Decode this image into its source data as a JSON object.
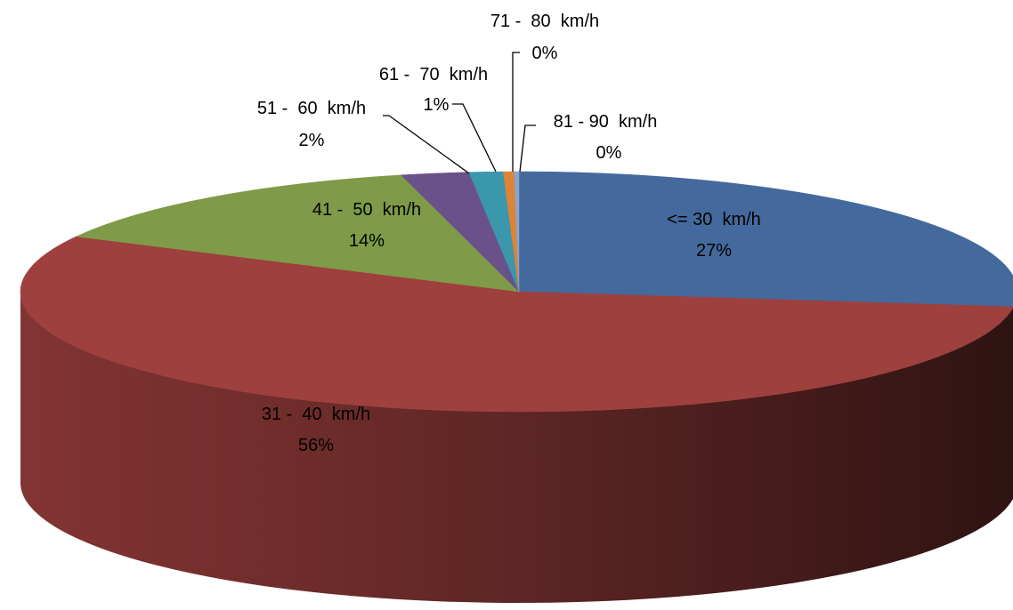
{
  "chart_data": {
    "type": "pie",
    "title": "",
    "three_d": true,
    "legend": "none",
    "slices": [
      {
        "label": "<= 30  km/h",
        "percent_label": "27%",
        "value": 27.0,
        "color": "#44699C"
      },
      {
        "label": "31 -  40  km/h",
        "percent_label": "56%",
        "value": 55.6,
        "color": "#9E403E"
      },
      {
        "label": "41 -  50  km/h",
        "percent_label": "14%",
        "value": 13.6,
        "color": "#7F9A48"
      },
      {
        "label": "51 -  60  km/h",
        "percent_label": "2%",
        "value": 2.2,
        "color": "#6A5189"
      },
      {
        "label": "61 -  70  km/h",
        "percent_label": "1%",
        "value": 1.1,
        "color": "#3B97AC"
      },
      {
        "label": "71 -  80  km/h",
        "percent_label": "0%",
        "value": 0.35,
        "color": "#DC8437"
      },
      {
        "label": "81 - 90  km/h",
        "percent_label": "0%",
        "value": 0.15,
        "color": "#8AA4CC"
      }
    ]
  }
}
